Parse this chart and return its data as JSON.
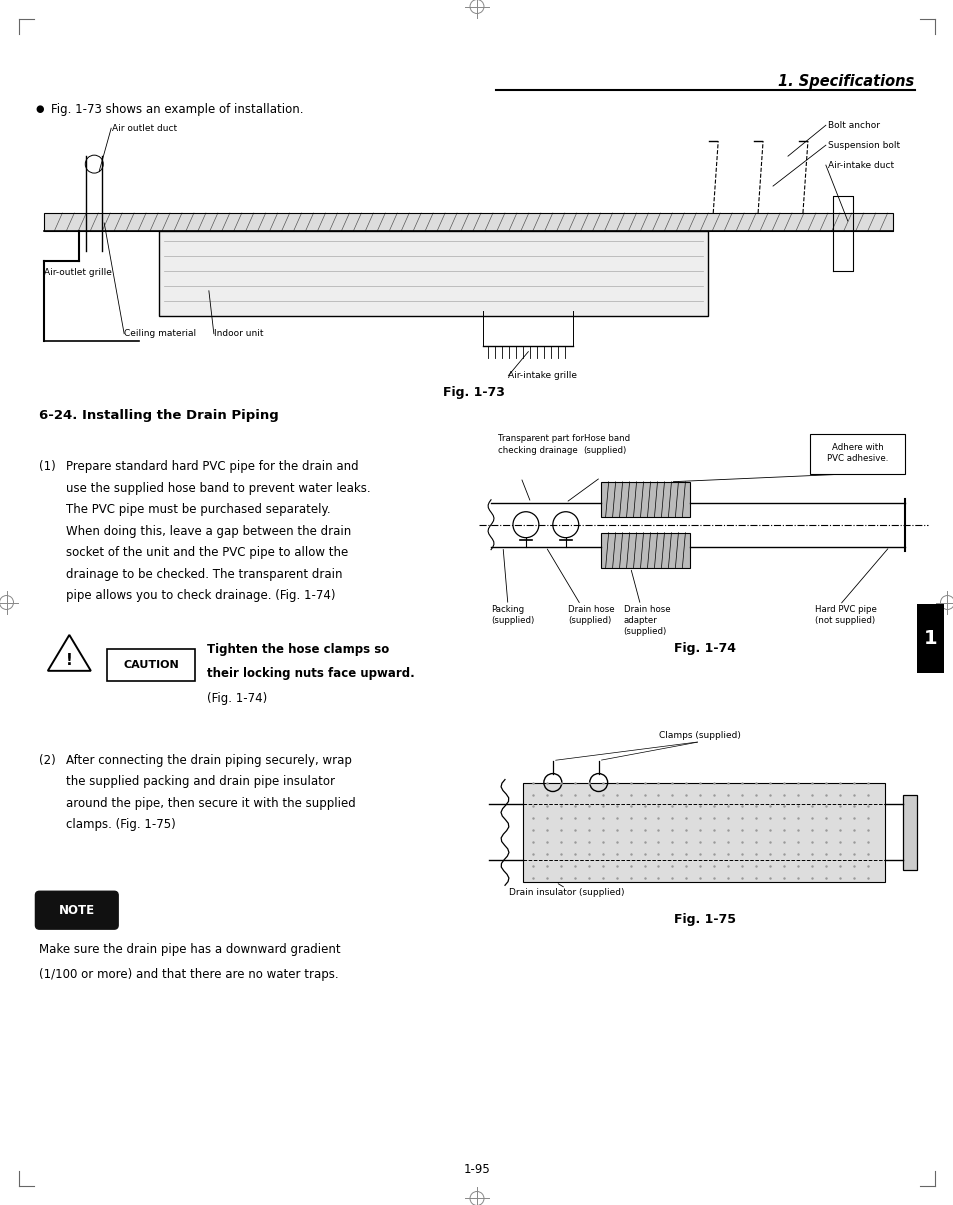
{
  "page_bg": "#ffffff",
  "page_width": 9.54,
  "page_height": 12.05,
  "dpi": 100,
  "header_title": "1. Specifications",
  "header_underline": true,
  "bullet_text": "Fig. 1-73 shows an example of installation.",
  "fig73_caption": "Fig. 1-73",
  "section_title": "6-24. Installing the Drain Piping",
  "para1_num": "(1)",
  "para1_text": "Prepare standard hard PVC pipe for the drain and\nuse the supplied hose band to prevent water leaks.\nThe PVC pipe must be purchased separately.\nWhen doing this, leave a gap between the drain\nsocket of the unit and the PVC pipe to allow the\ndrainage to be checked. The transparent drain\npipe allows you to check drainage. (Fig. 1-74)",
  "fig74_caption": "Fig. 1-74",
  "caution_text": "Tighten the hose clamps so\ntheir locking nuts face upward.\n(Fig. 1-74)",
  "para2_num": "(2)",
  "para2_text": "After connecting the drain piping securely, wrap\nthe supplied packing and drain pipe insulator\naround the pipe, then secure it with the supplied\nclamps. (Fig. 1-75)",
  "fig75_caption": "Fig. 1-75",
  "note_label": "NOTE",
  "note_text": "Make sure the drain pipe has a downward gradient\n(1/100 or more) and that there are no water traps.",
  "page_number": "1-95",
  "tab_color": "#000000",
  "tab_text": "1",
  "tab_text_color": "#ffffff"
}
